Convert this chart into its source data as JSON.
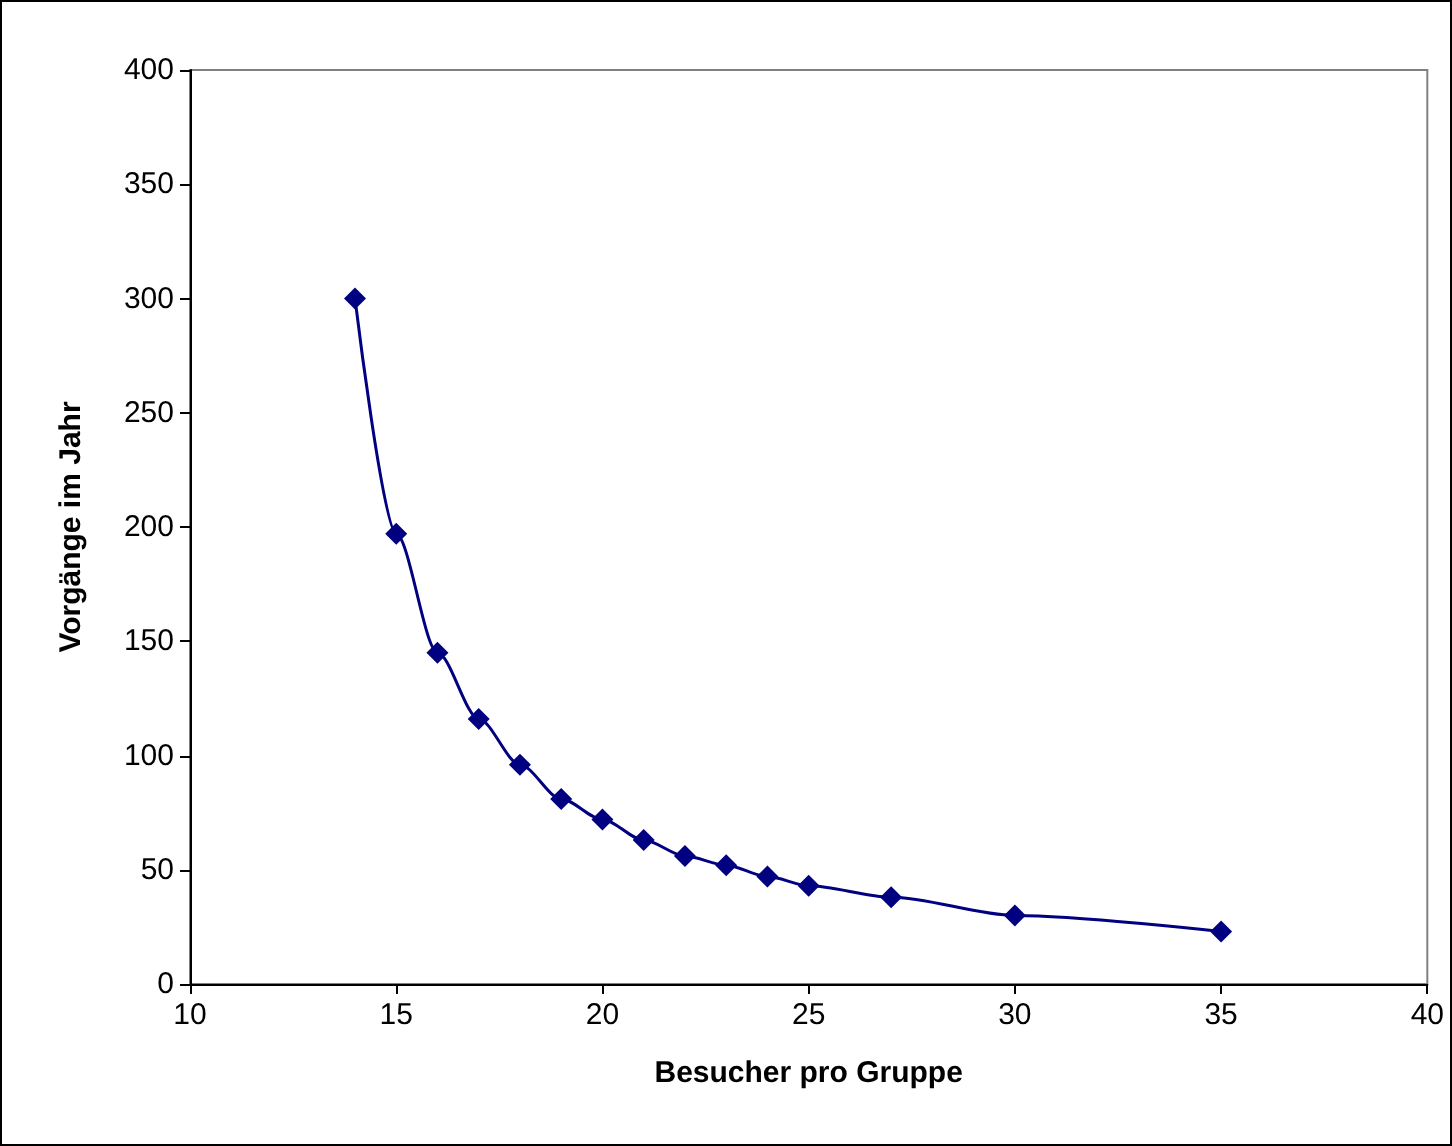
{
  "chart_data": {
    "type": "line",
    "xlabel": "Besucher pro Gruppe",
    "ylabel": "Vorgänge im Jahr",
    "x": [
      14,
      15,
      16,
      17,
      18,
      19,
      20,
      21,
      22,
      23,
      24,
      25,
      27,
      30,
      35
    ],
    "series": [
      {
        "color": "#000080",
        "values": [
          300,
          197,
          145,
          116,
          96,
          81,
          72,
          63,
          56,
          52,
          47,
          43,
          38,
          30,
          23
        ]
      }
    ],
    "xlim": [
      10,
      40
    ],
    "xticks": [
      10,
      15,
      20,
      25,
      30,
      35,
      40
    ],
    "ylim": [
      0,
      400
    ],
    "yticks": [
      0,
      50,
      100,
      150,
      200,
      250,
      300,
      350,
      400
    ],
    "grid": false,
    "marker": "diamond",
    "line_style": "solid"
  }
}
